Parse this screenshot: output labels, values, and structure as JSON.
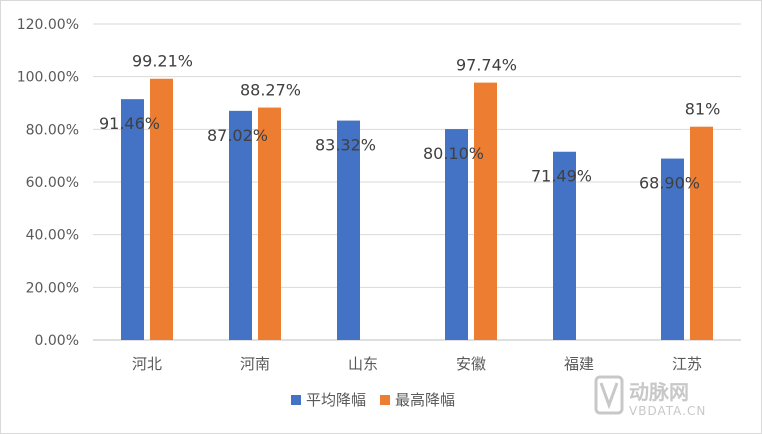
{
  "chart_data": {
    "type": "bar",
    "title": "",
    "xlabel": "",
    "ylabel": "",
    "categories": [
      "河北",
      "河南",
      "山东",
      "安徽",
      "福建",
      "江苏"
    ],
    "series": [
      {
        "name": "平均降幅",
        "color": "#4472c4",
        "values": [
          91.46,
          87.02,
          83.32,
          80.1,
          71.49,
          68.9
        ]
      },
      {
        "name": "最高降幅",
        "color": "#ed7d31",
        "values": [
          99.21,
          88.27,
          null,
          97.74,
          null,
          81
        ]
      }
    ],
    "data_labels": [
      [
        "91.46%",
        "87.02%",
        "83.32%",
        "80.10%",
        "71.49%",
        "68.90%"
      ],
      [
        "99.21%",
        "88.27%",
        "",
        "97.74%",
        "",
        "81%"
      ]
    ],
    "yticks": [
      "0.00%",
      "20.00%",
      "40.00%",
      "60.00%",
      "80.00%",
      "100.00%",
      "120.00%"
    ],
    "ylim": [
      0,
      120
    ],
    "grid": true,
    "legend_position": "bottom"
  },
  "watermark": {
    "logo_text": "动脉网",
    "sub_text": "VBDATA.CN"
  }
}
